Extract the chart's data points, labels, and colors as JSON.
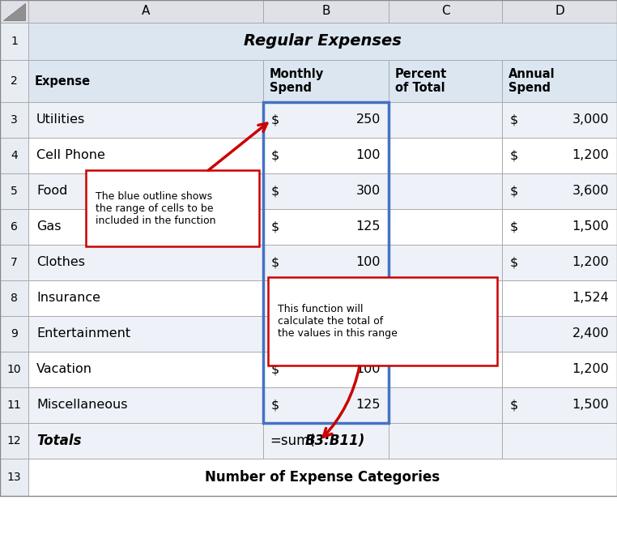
{
  "title": "Regular Expenses",
  "col_headers": [
    "A",
    "B",
    "C",
    "D"
  ],
  "header_row": [
    "Expense",
    "Monthly\nSpend",
    "Percent\nof Total",
    "Annual\nSpend"
  ],
  "rows": [
    [
      "Utilities",
      "250",
      "",
      "3,000"
    ],
    [
      "Cell Phone",
      "100",
      "",
      "1,200"
    ],
    [
      "Food",
      "300",
      "",
      "3,600"
    ],
    [
      "Gas",
      "125",
      "",
      "1,500"
    ],
    [
      "Clothes",
      "100",
      "",
      "1,200"
    ],
    [
      "Insurance",
      "",
      "",
      "1,524"
    ],
    [
      "Entertainment",
      "",
      "",
      "2,400"
    ],
    [
      "Vacation",
      "100",
      "",
      "1,200"
    ],
    [
      "Miscellaneous",
      "125",
      "",
      "1,500"
    ]
  ],
  "show_dollar_B": [
    true,
    true,
    true,
    true,
    true,
    true,
    true,
    true,
    true
  ],
  "show_dollar_D": [
    true,
    true,
    true,
    true,
    true,
    false,
    false,
    false,
    true
  ],
  "show_dollar_Dvacation": false,
  "totals_label": "Totals",
  "formula_prefix": "=sum(",
  "formula_bold": "B3:B11)",
  "bottom_label": "Number of Expense Categories",
  "tooltip1_text": "The blue outline shows\nthe range of cells to be\nincluded in the function",
  "tooltip2_text": "This function will\ncalculate the total of\nthe values in this range",
  "bg_col_header": "#e0e0e8",
  "bg_row_num": "#e8edf4",
  "bg_title": "#dce6f1",
  "bg_header2": "#dce6f1",
  "bg_data_odd": "#eef2f8",
  "bg_data_even": "#ffffff",
  "bg_totals": "#eef2f8",
  "bg_bottom": "#ffffff",
  "border_color": "#aaaaaa",
  "blue_outline": "#4472c4",
  "red_color": "#cc0000",
  "figsize": [
    7.62,
    6.59
  ],
  "dpi": 100
}
